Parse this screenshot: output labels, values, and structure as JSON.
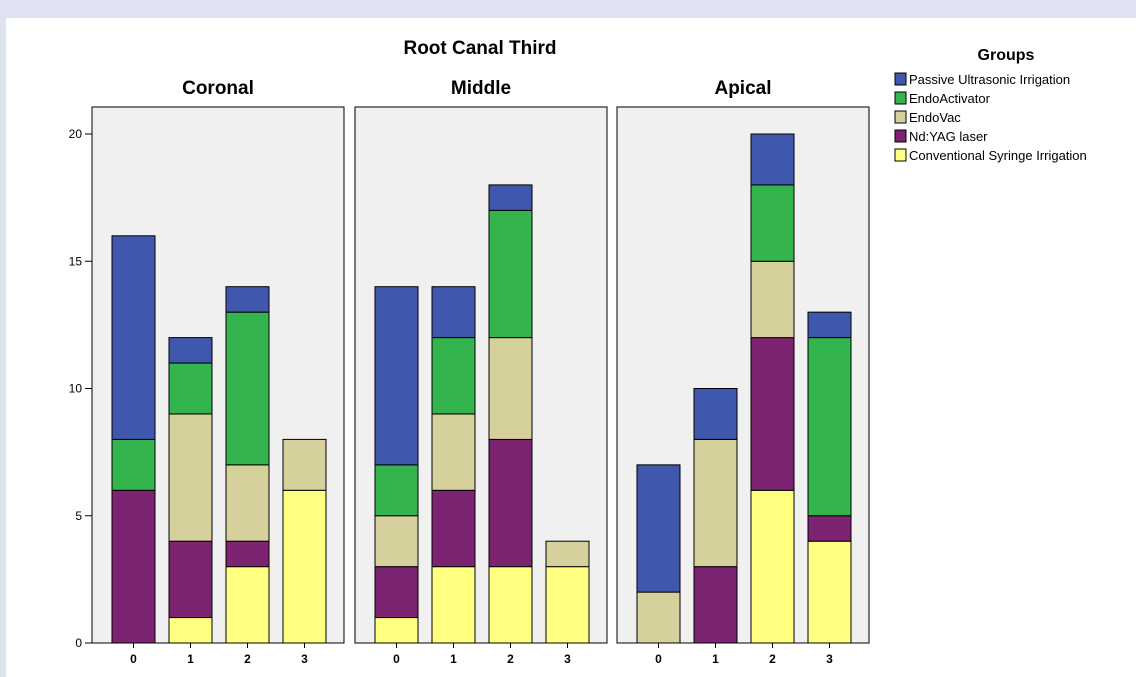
{
  "chart_data": {
    "type": "bar",
    "stacked": true,
    "title": "Root Canal Third",
    "legend_title": "Groups",
    "legend_position": "top-right",
    "panels": [
      "Coronal",
      "Middle",
      "Apical"
    ],
    "categories": [
      "0",
      "1",
      "2",
      "3"
    ],
    "yticks": [
      "0",
      "5",
      "10",
      "15",
      "20"
    ],
    "ylim": [
      0,
      20
    ],
    "series": [
      {
        "name": "Conventional Syringe Irrigation",
        "color": "#ffff80",
        "values": [
          [
            0,
            1,
            3,
            6
          ],
          [
            1,
            3,
            3,
            3
          ],
          [
            0,
            0,
            6,
            4
          ]
        ]
      },
      {
        "name": "Nd:YAG laser",
        "color": "#7c2472",
        "values": [
          [
            6,
            3,
            1,
            0
          ],
          [
            2,
            3,
            5,
            0
          ],
          [
            0,
            3,
            6,
            1
          ]
        ]
      },
      {
        "name": "EndoVac",
        "color": "#d6d19c",
        "values": [
          [
            0,
            5,
            3,
            2
          ],
          [
            2,
            3,
            4,
            1
          ],
          [
            2,
            5,
            3,
            0
          ]
        ]
      },
      {
        "name": "EndoActivator",
        "color": "#34b44c",
        "values": [
          [
            2,
            2,
            6,
            0
          ],
          [
            2,
            3,
            5,
            0
          ],
          [
            0,
            0,
            3,
            7
          ]
        ]
      },
      {
        "name": "Passive Ultrasonic Irrigation",
        "color": "#3f57ad",
        "values": [
          [
            8,
            1,
            1,
            0
          ],
          [
            7,
            2,
            1,
            0
          ],
          [
            5,
            2,
            2,
            1
          ]
        ]
      }
    ],
    "legend_order": [
      "Passive Ultrasonic Irrigation",
      "EndoActivator",
      "EndoVac",
      "Nd:YAG laser",
      "Conventional Syringe Irrigation"
    ]
  }
}
